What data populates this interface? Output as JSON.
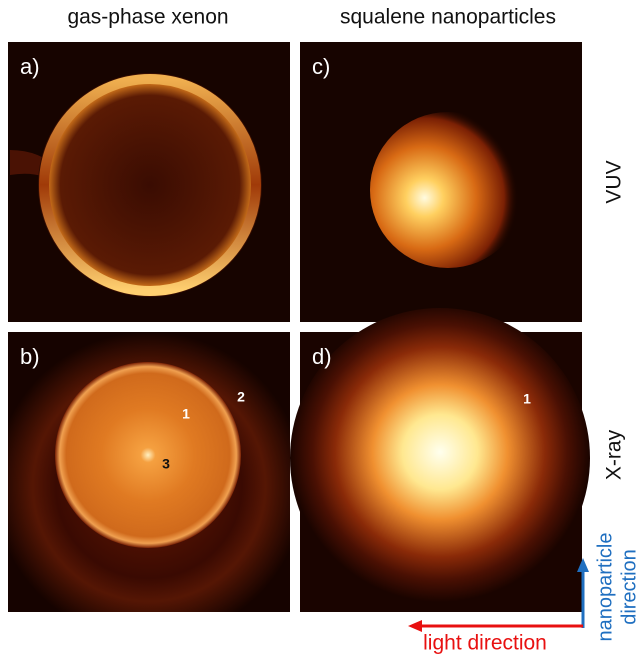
{
  "columns": [
    "gas-phase xenon",
    "squalene nanoparticles"
  ],
  "rows": [
    "VUV",
    "X-ray"
  ],
  "panels": [
    {
      "label": "a)"
    },
    {
      "label": "b)",
      "annotations": [
        "1",
        "2",
        "3"
      ]
    },
    {
      "label": "c)"
    },
    {
      "label": "d)",
      "annotations": [
        "1"
      ]
    }
  ],
  "arrows": {
    "horizontal": "light direction",
    "vertical": [
      "nanoparticle",
      "direction"
    ]
  }
}
